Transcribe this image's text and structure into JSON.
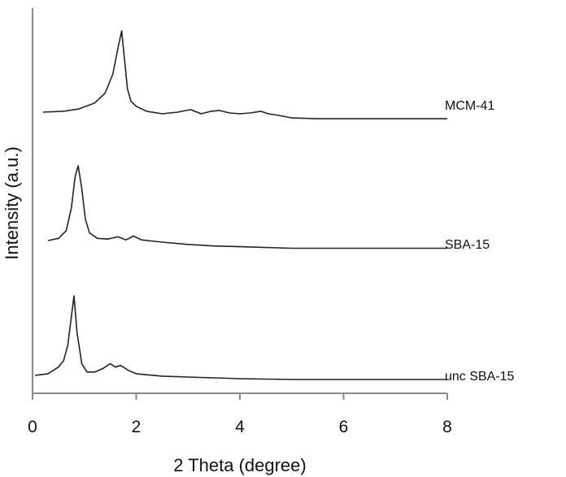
{
  "chart_data": {
    "type": "line",
    "xlabel": "2 Theta (degree)",
    "ylabel": "Intensity (a.u.)",
    "xlim": [
      0,
      8
    ],
    "xticks": [
      0,
      2,
      4,
      6,
      8
    ],
    "grid": false,
    "legend": "inline-right",
    "series": [
      {
        "name": "MCM-41",
        "x": [
          0.2,
          0.6,
          0.9,
          1.2,
          1.4,
          1.55,
          1.65,
          1.72,
          1.78,
          1.83,
          1.9,
          2.0,
          2.2,
          2.5,
          2.8,
          3.05,
          3.25,
          3.45,
          3.6,
          3.8,
          4.0,
          4.2,
          4.4,
          4.55,
          4.75,
          5.0,
          5.5,
          6.0,
          7.0,
          8.0
        ],
        "y": [
          0.02,
          0.03,
          0.06,
          0.13,
          0.25,
          0.48,
          0.8,
          1.0,
          0.62,
          0.3,
          0.15,
          0.09,
          0.03,
          0.0,
          0.02,
          0.05,
          0.0,
          0.03,
          0.04,
          0.01,
          0.0,
          0.01,
          0.03,
          0.0,
          -0.02,
          -0.05,
          -0.06,
          -0.06,
          -0.06,
          -0.06
        ]
      },
      {
        "name": "SBA-15",
        "x": [
          0.3,
          0.5,
          0.65,
          0.75,
          0.82,
          0.88,
          0.95,
          1.02,
          1.1,
          1.25,
          1.45,
          1.65,
          1.8,
          1.95,
          2.1,
          2.5,
          3.0,
          3.5,
          4.0,
          5.0,
          5.5,
          6.0,
          7.0,
          8.0
        ],
        "y": [
          0.02,
          0.05,
          0.15,
          0.45,
          0.85,
          1.0,
          0.7,
          0.3,
          0.12,
          0.05,
          0.04,
          0.07,
          0.03,
          0.08,
          0.03,
          0.0,
          -0.03,
          -0.05,
          -0.06,
          -0.08,
          -0.08,
          -0.08,
          -0.08,
          -0.08
        ]
      },
      {
        "name": "unc SBA-15",
        "x": [
          0.05,
          0.3,
          0.5,
          0.6,
          0.68,
          0.75,
          0.8,
          0.86,
          0.95,
          1.05,
          1.2,
          1.35,
          1.5,
          1.6,
          1.7,
          1.85,
          2.0,
          2.5,
          3.0,
          3.5,
          4.0,
          5.0,
          6.0,
          7.0,
          8.0
        ],
        "y": [
          0.04,
          0.06,
          0.14,
          0.22,
          0.4,
          0.75,
          1.0,
          0.55,
          0.18,
          0.08,
          0.08,
          0.12,
          0.18,
          0.14,
          0.16,
          0.1,
          0.06,
          0.03,
          0.02,
          0.01,
          0.0,
          -0.01,
          -0.01,
          -0.01,
          -0.01
        ]
      }
    ]
  }
}
